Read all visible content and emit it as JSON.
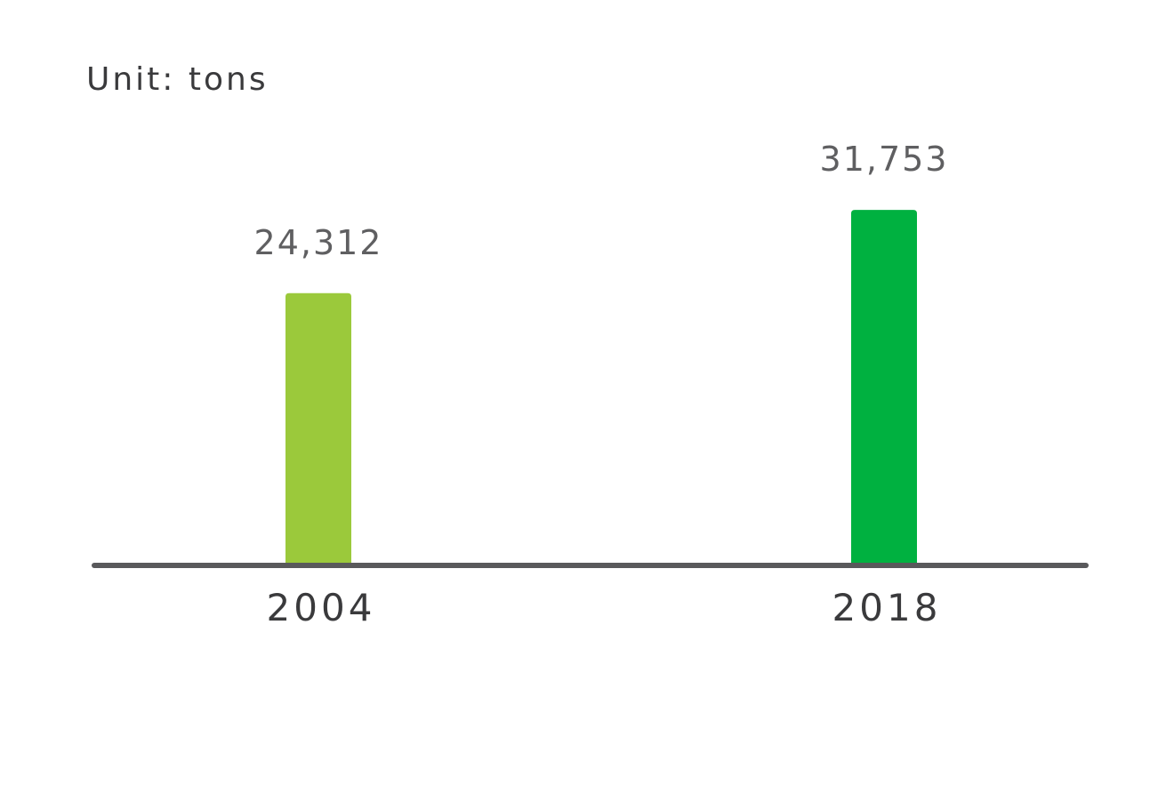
{
  "chart_data": {
    "type": "bar",
    "unit_label": "Unit: tons",
    "categories": [
      "2004",
      "2018"
    ],
    "values": [
      24312,
      31753
    ],
    "value_labels": [
      "24,312",
      "31,753"
    ],
    "colors": [
      "#9bc93b",
      "#00b140"
    ],
    "axis_color": "#59595b",
    "ylim": [
      0,
      37000
    ],
    "grid": false,
    "legend": "none"
  }
}
